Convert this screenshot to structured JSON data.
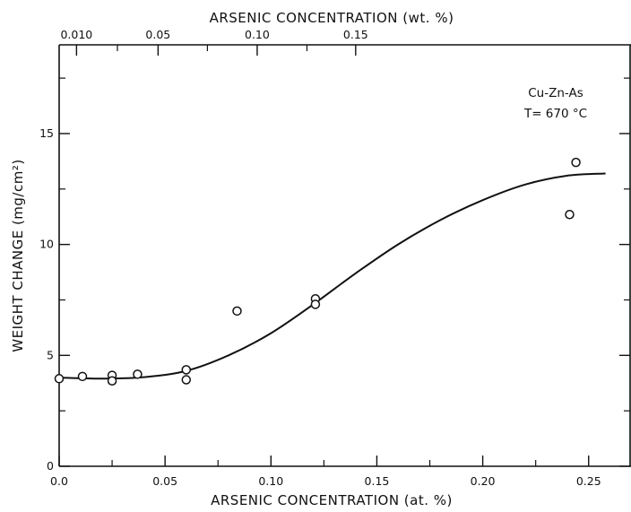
{
  "chart_data": {
    "type": "scatter",
    "title": "",
    "xlabel": "ARSENIC CONCENTRATION (at. %)",
    "x2label": "ARSENIC CONCENTRATION (wt. %)",
    "ylabel": "WEIGHT CHANGE (mg/cm²)",
    "xlim": [
      0,
      0.27
    ],
    "ylim": [
      0,
      19
    ],
    "x_ticks": [
      0.0,
      0.05,
      0.1,
      0.15,
      0.2,
      0.25
    ],
    "x_tick_labels": [
      "0.0",
      "0.05",
      "0.10",
      "0.15",
      "0.20",
      "0.25"
    ],
    "y_ticks": [
      0,
      5,
      10,
      15
    ],
    "y_tick_labels": [
      "0",
      "5",
      "10",
      "15"
    ],
    "top_ticks": [
      {
        "x": 0.0082,
        "label": "0.010"
      },
      {
        "x": 0.0467,
        "label": "0.05"
      },
      {
        "x": 0.0935,
        "label": "0.10"
      },
      {
        "x": 0.14,
        "label": "0.15"
      }
    ],
    "annotation": [
      "Cu-Zn-As",
      "T= 670 °C"
    ],
    "grid": false,
    "series": [
      {
        "points": [
          {
            "x": 0.0,
            "y": 3.95
          },
          {
            "x": 0.011,
            "y": 4.05
          },
          {
            "x": 0.025,
            "y": 4.1
          },
          {
            "x": 0.025,
            "y": 3.85
          },
          {
            "x": 0.037,
            "y": 4.15
          },
          {
            "x": 0.06,
            "y": 4.35
          },
          {
            "x": 0.06,
            "y": 3.9
          },
          {
            "x": 0.084,
            "y": 7.0
          },
          {
            "x": 0.121,
            "y": 7.55
          },
          {
            "x": 0.121,
            "y": 7.3
          },
          {
            "x": 0.241,
            "y": 11.35
          },
          {
            "x": 0.244,
            "y": 13.7
          }
        ]
      }
    ],
    "fit_curve": [
      [
        0.0,
        4.0
      ],
      [
        0.02,
        3.95
      ],
      [
        0.04,
        4.02
      ],
      [
        0.06,
        4.3
      ],
      [
        0.08,
        5.0
      ],
      [
        0.1,
        6.0
      ],
      [
        0.12,
        7.3
      ],
      [
        0.14,
        8.7
      ],
      [
        0.16,
        10.0
      ],
      [
        0.18,
        11.1
      ],
      [
        0.2,
        12.0
      ],
      [
        0.22,
        12.7
      ],
      [
        0.24,
        13.1
      ],
      [
        0.258,
        13.2
      ]
    ]
  }
}
